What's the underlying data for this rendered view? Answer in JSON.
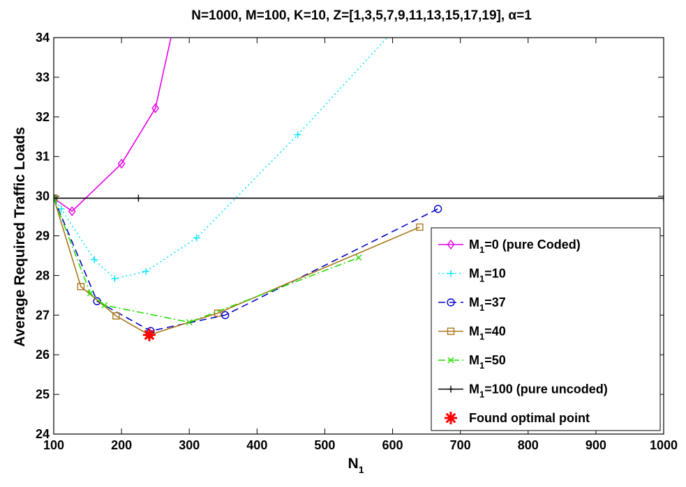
{
  "chart_data": {
    "type": "line",
    "title": "N=1000, M=100, K=10, Z=[1,3,5,7,9,11,13,15,17,19], α=1",
    "xlabel": {
      "main": "N",
      "sub": "1"
    },
    "ylabel": "Average Required Traffic Loads",
    "xlim": [
      100,
      1000
    ],
    "ylim": [
      24,
      34
    ],
    "xticks": [
      100,
      200,
      300,
      400,
      500,
      600,
      700,
      800,
      900,
      1000
    ],
    "yticks": [
      24,
      25,
      26,
      27,
      28,
      29,
      30,
      31,
      32,
      33,
      34
    ],
    "grid": false,
    "legend_position": "bottom-right",
    "series": [
      {
        "name": "M1=0 (pure Coded)",
        "label_main": "M",
        "label_sub": "1",
        "label_rest": "=0 (pure Coded)",
        "color": "#e600e6",
        "dash": "",
        "marker": "diamond",
        "x": [
          100,
          127,
          200,
          250,
          273
        ],
        "y": [
          29.95,
          29.62,
          30.82,
          32.22,
          34.0
        ],
        "markers_at": [
          100,
          127,
          200,
          250
        ]
      },
      {
        "name": "M1=10",
        "label_main": "M",
        "label_sub": "1",
        "label_rest": "=10",
        "color": "#00e5ff",
        "dash": "2,4",
        "marker": "plus",
        "x": [
          100,
          111,
          160,
          190,
          236,
          311,
          460,
          592
        ],
        "y": [
          29.95,
          29.68,
          28.4,
          27.92,
          28.1,
          28.95,
          31.55,
          34.0
        ],
        "markers_at": [
          100,
          111,
          160,
          190,
          236,
          311,
          460
        ]
      },
      {
        "name": "M1=37",
        "label_main": "M",
        "label_sub": "1",
        "label_rest": "=37",
        "color": "#0000cc",
        "dash": "10,6",
        "marker": "circle",
        "x": [
          100,
          164,
          243,
          353,
          667
        ],
        "y": [
          29.95,
          27.35,
          26.6,
          27.0,
          29.68
        ],
        "markers_at": [
          100,
          164,
          243,
          353,
          667
        ]
      },
      {
        "name": "M1=40",
        "label_main": "M",
        "label_sub": "1",
        "label_rest": "=40",
        "color": "#a8771a",
        "dash": "",
        "marker": "square",
        "x": [
          100,
          140,
          192,
          241,
          342,
          640
        ],
        "y": [
          29.95,
          27.72,
          26.98,
          26.5,
          27.05,
          29.22
        ],
        "markers_at": [
          100,
          140,
          192,
          241,
          342,
          640
        ]
      },
      {
        "name": "M1=50",
        "label_main": "M",
        "label_sub": "1",
        "label_rest": "=50",
        "color": "#22dd00",
        "dash": "10,4,2,4",
        "marker": "x",
        "x": [
          100,
          154,
          175,
          300,
          550
        ],
        "y": [
          29.95,
          27.55,
          27.25,
          26.82,
          28.45
        ],
        "markers_at": [
          100,
          154,
          175,
          300,
          550
        ]
      },
      {
        "name": "M1=100 (pure uncoded)",
        "label_main": "M",
        "label_sub": "1",
        "label_rest": "=100 (pure uncoded)",
        "color": "#000000",
        "dash": "",
        "marker": "plus",
        "x": [
          100,
          1000
        ],
        "y": [
          29.95,
          29.95
        ],
        "markers_at": [
          100,
          225,
          1000
        ]
      }
    ],
    "optimal_point": {
      "name": "Found optimal point",
      "x": 241,
      "y": 26.5,
      "color": "#ff0000",
      "marker": "star"
    }
  }
}
